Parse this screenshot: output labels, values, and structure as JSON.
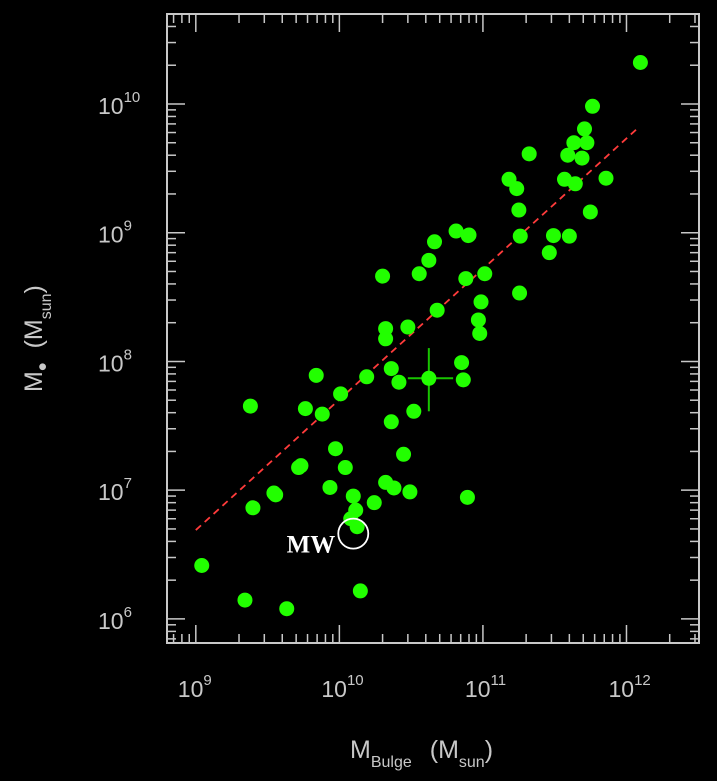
{
  "chart_data": {
    "type": "scatter",
    "title": "",
    "xlabel": {
      "main": "M",
      "sub": "Bulge",
      "unit_main": "(M",
      "unit_sub": "sun",
      "unit_close": ")"
    },
    "ylabel": {
      "main": "M",
      "bullet": "•",
      "unit_main": "(M",
      "unit_sub": "sun",
      "unit_close": ")"
    },
    "x_scale": "log",
    "y_scale": "log",
    "xlim": [
      630000000.0,
      3200000000000.0
    ],
    "ylim": [
      650000.0,
      50000000000.0
    ],
    "x_ticks": [
      {
        "base": "10",
        "exp": "9",
        "value": 1000000000.0
      },
      {
        "base": "10",
        "exp": "10",
        "value": 10000000000.0
      },
      {
        "base": "10",
        "exp": "11",
        "value": 100000000000.0
      },
      {
        "base": "10",
        "exp": "12",
        "value": 1000000000000.0
      }
    ],
    "y_ticks": [
      {
        "base": "10",
        "exp": "6",
        "value": 1000000.0
      },
      {
        "base": "10",
        "exp": "7",
        "value": 10000000.0
      },
      {
        "base": "10",
        "exp": "8",
        "value": 100000000.0
      },
      {
        "base": "10",
        "exp": "9",
        "value": 1000000000.0
      },
      {
        "base": "10",
        "exp": "10",
        "value": 10000000000.0
      }
    ],
    "grid": false,
    "colors": {
      "points": "#22ff00",
      "fit_line": "#ff3b3b",
      "frame": "#c8c8c8",
      "background": "#000000",
      "annotation": "#ffffff"
    },
    "series": [
      {
        "points": [
          [
            1100000000.0,
            2600000.0
          ],
          [
            2200000000.0,
            1400000.0
          ],
          [
            2400000000.0,
            45000000.0
          ],
          [
            2500000000.0,
            7300000.0
          ],
          [
            3500000000.0,
            9500000.0
          ],
          [
            3600000000.0,
            9200000.0
          ],
          [
            4300000000.0,
            1200000.0
          ],
          [
            5200000000.0,
            15000000.0
          ],
          [
            5400000000.0,
            15500000.0
          ],
          [
            5800000000.0,
            43000000.0
          ],
          [
            6900000000.0,
            78000000.0
          ],
          [
            7600000000.0,
            39000000.0
          ],
          [
            8600000000.0,
            10500000.0
          ],
          [
            9400000000.0,
            21000000.0
          ],
          [
            10200000000.0,
            56000000.0
          ],
          [
            11000000000.0,
            15000000.0
          ],
          [
            12000000000.0,
            6000000.0
          ],
          [
            12500000000.0,
            9000000.0
          ],
          [
            13000000000.0,
            7000000.0
          ],
          [
            13300000000.0,
            5200000.0
          ],
          [
            14000000000.0,
            1650000.0
          ],
          [
            15500000000.0,
            76000000.0
          ],
          [
            17500000000.0,
            8000000.0
          ],
          [
            20000000000.0,
            460000000.0
          ],
          [
            21000000000.0,
            180000000.0
          ],
          [
            21000000000.0,
            150000000.0
          ],
          [
            21000000000.0,
            11500000.0
          ],
          [
            23000000000.0,
            34000000.0
          ],
          [
            23000000000.0,
            88000000.0
          ],
          [
            24000000000.0,
            10400000.0
          ],
          [
            26000000000.0,
            69000000.0
          ],
          [
            28000000000.0,
            19000000.0
          ],
          [
            30000000000.0,
            185000000.0
          ],
          [
            31000000000.0,
            9700000.0
          ],
          [
            33000000000.0,
            41000000.0
          ],
          [
            36000000000.0,
            480000000.0
          ],
          [
            42000000000.0,
            610000000.0
          ],
          [
            46000000000.0,
            850000000.0
          ],
          [
            48000000000.0,
            250000000.0
          ],
          [
            65000000000.0,
            1030000000.0
          ],
          [
            71000000000.0,
            98000000.0
          ],
          [
            73000000000.0,
            72000000.0
          ],
          [
            76000000000.0,
            440000000.0
          ],
          [
            78000000000.0,
            8800000.0
          ],
          [
            79000000000.0,
            950000000.0
          ],
          [
            80000000000.0,
            960000000.0
          ],
          [
            93000000000.0,
            210000000.0
          ],
          [
            95000000000.0,
            165000000.0
          ],
          [
            97000000000.0,
            290000000.0
          ],
          [
            103000000000.0,
            480000000.0
          ],
          [
            152000000000.0,
            2600000000.0
          ],
          [
            172000000000.0,
            2200000000.0
          ],
          [
            178000000000.0,
            1500000000.0
          ],
          [
            180000000000.0,
            340000000.0
          ],
          [
            182000000000.0,
            940000000.0
          ],
          [
            210000000000.0,
            4100000000.0
          ],
          [
            290000000000.0,
            700000000.0
          ],
          [
            310000000000.0,
            950000000.0
          ],
          [
            370000000000.0,
            2600000000.0
          ],
          [
            390000000000.0,
            4000000000.0
          ],
          [
            400000000000.0,
            940000000.0
          ],
          [
            430000000000.0,
            5000000000.0
          ],
          [
            440000000000.0,
            2400000000.0
          ],
          [
            490000000000.0,
            3800000000.0
          ],
          [
            510000000000.0,
            6400000000.0
          ],
          [
            530000000000.0,
            5000000000.0
          ],
          [
            560000000000.0,
            1450000000.0
          ],
          [
            580000000000.0,
            9600000000.0
          ],
          [
            720000000000.0,
            2650000000.0
          ],
          [
            1250000000000.0,
            21000000000.0
          ]
        ]
      }
    ],
    "highlight": {
      "label": "MW",
      "x": 12500000000.0,
      "y": 4600000.0
    },
    "error_point": {
      "x": 42000000000.0,
      "y": 74000000.0,
      "x_err": [
        30000000000.0,
        62000000000.0
      ],
      "y_err": [
        41000000.0,
        127000000.0
      ]
    },
    "fit_line": {
      "style": "dashed",
      "x": [
        1000000000.0,
        1200000000000.0
      ],
      "y": [
        4900000.0,
        6500000000.0
      ]
    }
  }
}
